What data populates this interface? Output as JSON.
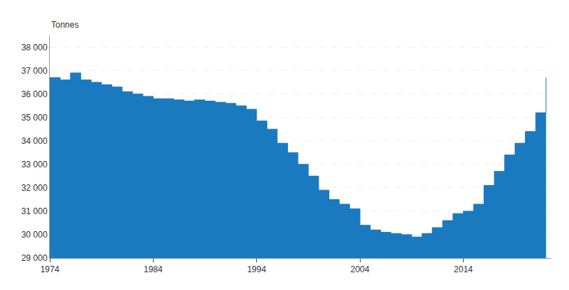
{
  "chart_data": {
    "type": "step",
    "ylabel": "Tonnes",
    "color": "#1a7abf",
    "grid": true,
    "xlim": [
      1974,
      2022.5
    ],
    "ylim": [
      29000,
      38500
    ],
    "xticks": [
      1974,
      1984,
      1994,
      2004,
      2014
    ],
    "yticks": [
      {
        "value": 29000,
        "label": "29 000"
      },
      {
        "value": 30000,
        "label": "30 000"
      },
      {
        "value": 31000,
        "label": "31 000"
      },
      {
        "value": 32000,
        "label": "32 000"
      },
      {
        "value": 33000,
        "label": "33 000"
      },
      {
        "value": 34000,
        "label": "34 000"
      },
      {
        "value": 35000,
        "label": "35 000"
      },
      {
        "value": 36000,
        "label": "36 000"
      },
      {
        "value": 37000,
        "label": "37 000"
      },
      {
        "value": 38000,
        "label": "38 000"
      }
    ],
    "x": [
      1974,
      1975,
      1976,
      1977,
      1978,
      1979,
      1980,
      1981,
      1982,
      1983,
      1984,
      1985,
      1986,
      1987,
      1988,
      1989,
      1990,
      1991,
      1992,
      1993,
      1994,
      1995,
      1996,
      1997,
      1998,
      1999,
      2000,
      2001,
      2002,
      2003,
      2004,
      2005,
      2006,
      2007,
      2008,
      2009,
      2010,
      2011,
      2012,
      2013,
      2014,
      2015,
      2016,
      2017,
      2018,
      2019,
      2020,
      2021,
      2022
    ],
    "values": [
      36700,
      36600,
      36900,
      36600,
      36500,
      36400,
      36300,
      36100,
      36000,
      35900,
      35800,
      35800,
      35750,
      35700,
      35750,
      35700,
      35650,
      35600,
      35500,
      35350,
      34850,
      34500,
      33900,
      33500,
      33000,
      32500,
      31900,
      31500,
      31300,
      31100,
      30400,
      30200,
      30100,
      30050,
      30000,
      29900,
      30050,
      30300,
      30600,
      30900,
      31000,
      31300,
      32100,
      32700,
      33400,
      33900,
      34400,
      35200,
      36700
    ]
  }
}
